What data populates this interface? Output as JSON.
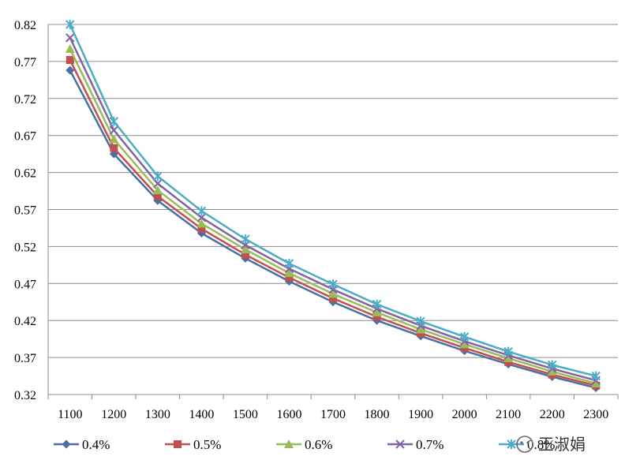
{
  "chart_data": {
    "type": "line",
    "categories": [
      "1100",
      "1200",
      "1300",
      "1400",
      "1500",
      "1600",
      "1700",
      "1800",
      "1900",
      "2000",
      "2100",
      "2200",
      "2300"
    ],
    "yticks": [
      "0.32",
      "0.37",
      "0.42",
      "0.47",
      "0.52",
      "0.57",
      "0.62",
      "0.67",
      "0.72",
      "0.77",
      "0.82"
    ],
    "ylim": [
      0.32,
      0.82
    ],
    "grid": "horizontal",
    "legend_position": "bottom",
    "series": [
      {
        "name": "0.4%",
        "color": "#4A6FA5",
        "marker": "diamond",
        "values": [
          0.758,
          0.645,
          0.582,
          0.538,
          0.504,
          0.473,
          0.445,
          0.42,
          0.399,
          0.379,
          0.361,
          0.344,
          0.329
        ]
      },
      {
        "name": "0.5%",
        "color": "#C0504D",
        "marker": "square",
        "values": [
          0.772,
          0.653,
          0.588,
          0.544,
          0.509,
          0.478,
          0.45,
          0.425,
          0.403,
          0.383,
          0.364,
          0.347,
          0.332
        ]
      },
      {
        "name": "0.6%",
        "color": "#9BBB59",
        "marker": "triangle",
        "values": [
          0.787,
          0.665,
          0.596,
          0.551,
          0.516,
          0.484,
          0.456,
          0.431,
          0.408,
          0.388,
          0.369,
          0.351,
          0.335
        ]
      },
      {
        "name": "0.7%",
        "color": "#8064A2",
        "marker": "x",
        "values": [
          0.802,
          0.677,
          0.605,
          0.559,
          0.522,
          0.49,
          0.462,
          0.436,
          0.413,
          0.392,
          0.373,
          0.355,
          0.339
        ]
      },
      {
        "name": "0.8%",
        "color": "#4BACC6",
        "marker": "star",
        "values": [
          0.82,
          0.689,
          0.615,
          0.568,
          0.53,
          0.497,
          0.469,
          0.442,
          0.419,
          0.398,
          0.378,
          0.36,
          0.345
        ]
      }
    ]
  },
  "watermark": {
    "text": "王淑娟",
    "icon": "wechat-icon"
  }
}
